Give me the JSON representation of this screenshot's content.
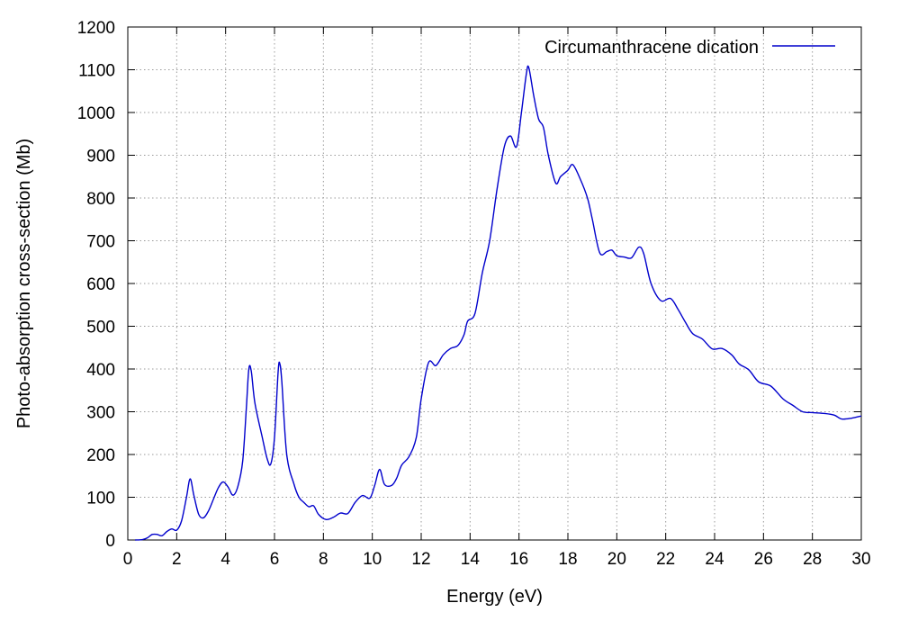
{
  "chart_data": {
    "type": "line",
    "title": "",
    "xlabel": "Energy (eV)",
    "ylabel": "Photo-absorption cross-section (Mb)",
    "xlim": [
      0,
      30
    ],
    "ylim": [
      0,
      1200
    ],
    "xticks": [
      0,
      2,
      4,
      6,
      8,
      10,
      12,
      14,
      16,
      18,
      20,
      22,
      24,
      26,
      28,
      30
    ],
    "yticks": [
      0,
      100,
      200,
      300,
      400,
      500,
      600,
      700,
      800,
      900,
      1000,
      1100,
      1200
    ],
    "grid": true,
    "legend": {
      "position": "top-right"
    },
    "series": [
      {
        "name": "Circumanthracene dication",
        "color": "#0000cc",
        "points": [
          [
            0.3,
            0
          ],
          [
            0.6,
            1
          ],
          [
            0.8,
            5
          ],
          [
            1.0,
            13
          ],
          [
            1.2,
            13
          ],
          [
            1.4,
            10
          ],
          [
            1.6,
            20
          ],
          [
            1.8,
            26
          ],
          [
            2.0,
            23
          ],
          [
            2.2,
            45
          ],
          [
            2.4,
            100
          ],
          [
            2.55,
            143
          ],
          [
            2.7,
            105
          ],
          [
            2.9,
            60
          ],
          [
            3.1,
            52
          ],
          [
            3.3,
            68
          ],
          [
            3.5,
            95
          ],
          [
            3.7,
            122
          ],
          [
            3.9,
            136
          ],
          [
            4.1,
            124
          ],
          [
            4.3,
            105
          ],
          [
            4.5,
            125
          ],
          [
            4.7,
            185
          ],
          [
            4.85,
            310
          ],
          [
            4.95,
            400
          ],
          [
            5.05,
            395
          ],
          [
            5.2,
            320
          ],
          [
            5.5,
            240
          ],
          [
            5.7,
            190
          ],
          [
            5.85,
            178
          ],
          [
            6.0,
            240
          ],
          [
            6.15,
            395
          ],
          [
            6.22,
            412
          ],
          [
            6.3,
            370
          ],
          [
            6.5,
            200
          ],
          [
            6.8,
            130
          ],
          [
            7.0,
            100
          ],
          [
            7.2,
            88
          ],
          [
            7.4,
            78
          ],
          [
            7.6,
            80
          ],
          [
            7.8,
            60
          ],
          [
            8.1,
            48
          ],
          [
            8.4,
            53
          ],
          [
            8.7,
            63
          ],
          [
            9.0,
            62
          ],
          [
            9.3,
            88
          ],
          [
            9.6,
            104
          ],
          [
            9.9,
            98
          ],
          [
            10.1,
            128
          ],
          [
            10.3,
            165
          ],
          [
            10.5,
            130
          ],
          [
            10.8,
            128
          ],
          [
            11.0,
            145
          ],
          [
            11.2,
            175
          ],
          [
            11.5,
            195
          ],
          [
            11.8,
            240
          ],
          [
            12.0,
            330
          ],
          [
            12.3,
            415
          ],
          [
            12.6,
            408
          ],
          [
            12.9,
            433
          ],
          [
            13.2,
            448
          ],
          [
            13.5,
            455
          ],
          [
            13.75,
            480
          ],
          [
            13.9,
            512
          ],
          [
            14.2,
            530
          ],
          [
            14.5,
            625
          ],
          [
            14.8,
            700
          ],
          [
            15.1,
            820
          ],
          [
            15.4,
            920
          ],
          [
            15.65,
            945
          ],
          [
            15.9,
            920
          ],
          [
            16.1,
            1000
          ],
          [
            16.3,
            1090
          ],
          [
            16.4,
            1105
          ],
          [
            16.6,
            1040
          ],
          [
            16.8,
            985
          ],
          [
            17.0,
            965
          ],
          [
            17.2,
            900
          ],
          [
            17.5,
            835
          ],
          [
            17.7,
            850
          ],
          [
            18.0,
            865
          ],
          [
            18.2,
            878
          ],
          [
            18.5,
            845
          ],
          [
            18.8,
            800
          ],
          [
            19.0,
            750
          ],
          [
            19.3,
            672
          ],
          [
            19.6,
            675
          ],
          [
            19.8,
            678
          ],
          [
            20.0,
            665
          ],
          [
            20.3,
            662
          ],
          [
            20.6,
            660
          ],
          [
            20.9,
            685
          ],
          [
            21.1,
            670
          ],
          [
            21.4,
            600
          ],
          [
            21.8,
            560
          ],
          [
            22.2,
            565
          ],
          [
            22.5,
            540
          ],
          [
            22.8,
            510
          ],
          [
            23.1,
            483
          ],
          [
            23.5,
            470
          ],
          [
            23.9,
            447
          ],
          [
            24.3,
            448
          ],
          [
            24.7,
            433
          ],
          [
            25.0,
            412
          ],
          [
            25.4,
            398
          ],
          [
            25.8,
            370
          ],
          [
            26.3,
            360
          ],
          [
            26.8,
            330
          ],
          [
            27.2,
            315
          ],
          [
            27.6,
            300
          ],
          [
            28.0,
            298
          ],
          [
            28.5,
            296
          ],
          [
            28.9,
            292
          ],
          [
            29.2,
            283
          ],
          [
            29.6,
            285
          ],
          [
            30.0,
            290
          ]
        ]
      }
    ]
  }
}
